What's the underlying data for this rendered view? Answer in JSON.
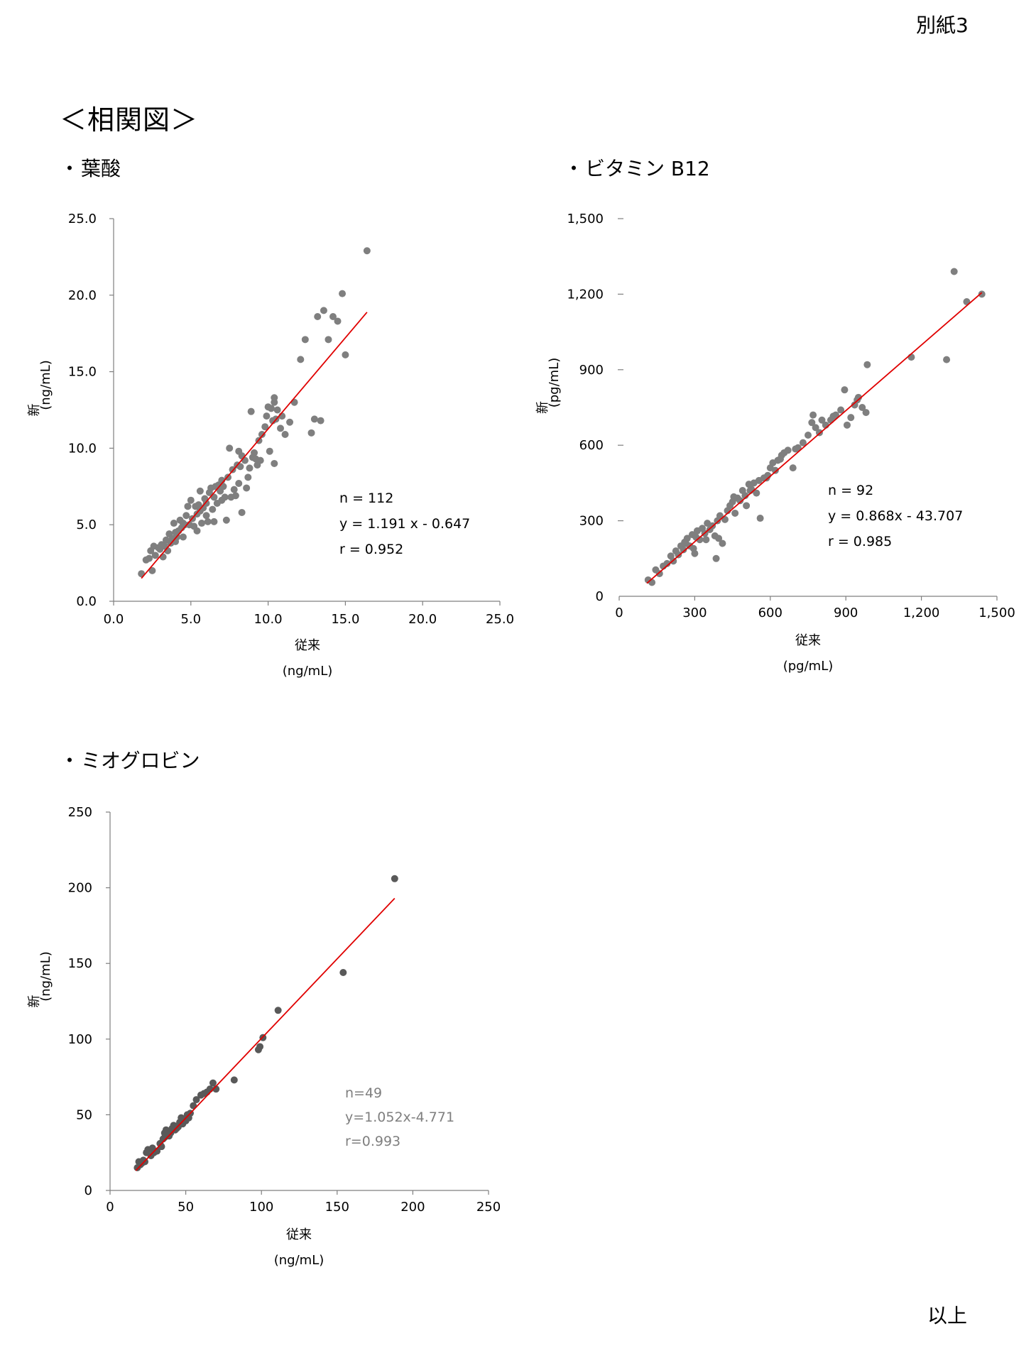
{
  "document_label": "別紙3",
  "section_title": "＜相関図＞",
  "footer": "以上",
  "bullet": "・",
  "chart_data": [
    {
      "type": "scatter",
      "title": "葉酸",
      "xlabel": "従来",
      "xunit": "(ng/mL)",
      "ylabel": "新",
      "yunit": "(ng/mL)",
      "xlim": [
        0,
        25
      ],
      "ylim": [
        0,
        25
      ],
      "xticks": [
        "0.0",
        "5.0",
        "10.0",
        "15.0",
        "20.0",
        "25.0"
      ],
      "yticks": [
        "0.0",
        "5.0",
        "10.0",
        "15.0",
        "20.0",
        "25.0"
      ],
      "stats": [
        "n = 112",
        "y = 1.191 x - 0.647",
        "r = 0.952"
      ],
      "regression": {
        "slope": 1.191,
        "intercept": -0.647,
        "x_range": [
          1.8,
          16.4
        ]
      },
      "point_color": "#7f7f7f",
      "line_color": "#e00000",
      "grid": false,
      "points": [
        [
          1.8,
          1.8
        ],
        [
          2.1,
          2.7
        ],
        [
          2.3,
          2.8
        ],
        [
          2.4,
          3.3
        ],
        [
          2.5,
          2.0
        ],
        [
          2.6,
          3.6
        ],
        [
          2.7,
          3.0
        ],
        [
          2.9,
          3.5
        ],
        [
          3.0,
          3.4
        ],
        [
          3.1,
          3.7
        ],
        [
          3.2,
          2.9
        ],
        [
          3.3,
          3.6
        ],
        [
          3.4,
          4.0
        ],
        [
          3.5,
          3.3
        ],
        [
          3.6,
          4.4
        ],
        [
          3.7,
          3.8
        ],
        [
          3.8,
          4.1
        ],
        [
          3.9,
          5.1
        ],
        [
          4.0,
          4.5
        ],
        [
          4.0,
          3.9
        ],
        [
          4.1,
          4.2
        ],
        [
          4.2,
          4.6
        ],
        [
          4.3,
          5.3
        ],
        [
          4.4,
          4.8
        ],
        [
          4.5,
          5.1
        ],
        [
          4.5,
          4.2
        ],
        [
          4.6,
          5.0
        ],
        [
          4.7,
          5.6
        ],
        [
          4.8,
          6.2
        ],
        [
          4.9,
          5.0
        ],
        [
          5.0,
          6.6
        ],
        [
          5.1,
          5.4
        ],
        [
          5.2,
          4.9
        ],
        [
          5.3,
          6.2
        ],
        [
          5.4,
          4.6
        ],
        [
          5.4,
          5.7
        ],
        [
          5.5,
          6.3
        ],
        [
          5.6,
          7.2
        ],
        [
          5.6,
          5.9
        ],
        [
          5.7,
          5.1
        ],
        [
          5.8,
          6.1
        ],
        [
          5.9,
          6.7
        ],
        [
          6.0,
          5.6
        ],
        [
          6.0,
          6.4
        ],
        [
          6.1,
          5.2
        ],
        [
          6.2,
          7.1
        ],
        [
          6.3,
          7.4
        ],
        [
          6.4,
          6.0
        ],
        [
          6.5,
          5.2
        ],
        [
          6.5,
          6.8
        ],
        [
          6.6,
          7.5
        ],
        [
          6.7,
          6.4
        ],
        [
          6.8,
          7.6
        ],
        [
          6.9,
          7.2
        ],
        [
          7.0,
          6.6
        ],
        [
          7.0,
          7.9
        ],
        [
          7.1,
          7.5
        ],
        [
          7.2,
          6.8
        ],
        [
          7.3,
          5.3
        ],
        [
          7.4,
          8.1
        ],
        [
          7.5,
          10.0
        ],
        [
          7.6,
          6.8
        ],
        [
          7.7,
          8.6
        ],
        [
          7.8,
          7.3
        ],
        [
          7.9,
          6.9
        ],
        [
          8.0,
          8.9
        ],
        [
          8.1,
          9.8
        ],
        [
          8.1,
          7.7
        ],
        [
          8.2,
          8.8
        ],
        [
          8.3,
          9.5
        ],
        [
          8.3,
          5.8
        ],
        [
          8.5,
          9.2
        ],
        [
          8.6,
          7.4
        ],
        [
          8.7,
          8.1
        ],
        [
          8.8,
          8.7
        ],
        [
          8.9,
          12.4
        ],
        [
          9.0,
          9.4
        ],
        [
          9.1,
          9.7
        ],
        [
          9.2,
          9.3
        ],
        [
          9.3,
          8.9
        ],
        [
          9.4,
          10.5
        ],
        [
          9.5,
          9.2
        ],
        [
          9.6,
          10.9
        ],
        [
          9.8,
          11.4
        ],
        [
          9.9,
          12.1
        ],
        [
          10.0,
          12.7
        ],
        [
          10.1,
          9.8
        ],
        [
          10.2,
          12.6
        ],
        [
          10.3,
          11.8
        ],
        [
          10.4,
          13.0
        ],
        [
          10.4,
          13.3
        ],
        [
          10.5,
          11.9
        ],
        [
          10.6,
          12.5
        ],
        [
          10.8,
          11.3
        ],
        [
          10.9,
          12.1
        ],
        [
          11.1,
          10.9
        ],
        [
          11.4,
          11.7
        ],
        [
          11.7,
          13.0
        ],
        [
          12.1,
          15.8
        ],
        [
          12.4,
          17.1
        ],
        [
          12.8,
          11.0
        ],
        [
          13.0,
          11.9
        ],
        [
          13.2,
          18.6
        ],
        [
          13.4,
          11.8
        ],
        [
          13.6,
          19.0
        ],
        [
          13.9,
          17.1
        ],
        [
          14.2,
          18.6
        ],
        [
          14.5,
          18.3
        ],
        [
          14.8,
          20.1
        ],
        [
          15.0,
          16.1
        ],
        [
          16.4,
          22.9
        ],
        [
          10.4,
          9.0
        ]
      ]
    },
    {
      "type": "scatter",
      "title": "ビタミン B12",
      "xlabel": "従来",
      "xunit": "(pg/mL)",
      "ylabel": "新",
      "yunit": "(pg/mL)",
      "xlim": [
        0,
        1500
      ],
      "ylim": [
        0,
        1500
      ],
      "xticks": [
        "0",
        "300",
        "600",
        "900",
        "1,200",
        "1,500"
      ],
      "yticks": [
        "0",
        "300",
        "600",
        "900",
        "1,200",
        "1,500"
      ],
      "stats": [
        "n = 92",
        "y = 0.868x - 43.707",
        "r = 0.985"
      ],
      "regression": {
        "slope": 0.868,
        "intercept": -43.707,
        "x_range": [
          110,
          1440
        ]
      },
      "point_color": "#7f7f7f",
      "line_color": "#e00000",
      "grid": false,
      "points": [
        [
          115,
          65
        ],
        [
          130,
          55
        ],
        [
          145,
          105
        ],
        [
          160,
          90
        ],
        [
          175,
          120
        ],
        [
          190,
          130
        ],
        [
          205,
          160
        ],
        [
          215,
          140
        ],
        [
          225,
          180
        ],
        [
          235,
          165
        ],
        [
          245,
          200
        ],
        [
          255,
          185
        ],
        [
          265,
          210
        ],
        [
          270,
          230
        ],
        [
          280,
          200
        ],
        [
          290,
          245
        ],
        [
          295,
          190
        ],
        [
          305,
          235
        ],
        [
          310,
          260
        ],
        [
          320,
          225
        ],
        [
          330,
          270
        ],
        [
          340,
          250
        ],
        [
          350,
          290
        ],
        [
          360,
          265
        ],
        [
          370,
          280
        ],
        [
          380,
          240
        ],
        [
          385,
          150
        ],
        [
          390,
          300
        ],
        [
          400,
          320
        ],
        [
          410,
          210
        ],
        [
          420,
          305
        ],
        [
          430,
          340
        ],
        [
          440,
          360
        ],
        [
          450,
          375
        ],
        [
          460,
          330
        ],
        [
          470,
          390
        ],
        [
          480,
          380
        ],
        [
          490,
          420
        ],
        [
          500,
          400
        ],
        [
          505,
          360
        ],
        [
          515,
          445
        ],
        [
          525,
          425
        ],
        [
          535,
          450
        ],
        [
          545,
          410
        ],
        [
          555,
          460
        ],
        [
          560,
          310
        ],
        [
          575,
          470
        ],
        [
          590,
          480
        ],
        [
          600,
          510
        ],
        [
          610,
          530
        ],
        [
          620,
          500
        ],
        [
          630,
          540
        ],
        [
          645,
          560
        ],
        [
          655,
          570
        ],
        [
          670,
          580
        ],
        [
          690,
          510
        ],
        [
          710,
          590
        ],
        [
          730,
          610
        ],
        [
          750,
          640
        ],
        [
          765,
          690
        ],
        [
          770,
          720
        ],
        [
          780,
          670
        ],
        [
          795,
          650
        ],
        [
          805,
          700
        ],
        [
          820,
          680
        ],
        [
          840,
          700
        ],
        [
          860,
          720
        ],
        [
          880,
          740
        ],
        [
          895,
          820
        ],
        [
          905,
          680
        ],
        [
          920,
          710
        ],
        [
          935,
          760
        ],
        [
          950,
          790
        ],
        [
          965,
          750
        ],
        [
          980,
          730
        ],
        [
          985,
          920
        ],
        [
          1160,
          950
        ],
        [
          1300,
          940
        ],
        [
          1330,
          1290
        ],
        [
          1380,
          1170
        ],
        [
          1440,
          1200
        ],
        [
          260,
          215
        ],
        [
          300,
          170
        ],
        [
          345,
          225
        ],
        [
          395,
          230
        ],
        [
          455,
          395
        ],
        [
          520,
          420
        ],
        [
          585,
          470
        ],
        [
          640,
          545
        ],
        [
          700,
          585
        ],
        [
          850,
          715
        ],
        [
          945,
          780
        ]
      ]
    },
    {
      "type": "scatter",
      "title": "ミオグロビン",
      "xlabel": "従来",
      "xunit": "(ng/mL)",
      "ylabel": "新",
      "yunit": "(ng/mL)",
      "xlim": [
        0,
        250
      ],
      "ylim": [
        0,
        250
      ],
      "xticks": [
        "0",
        "50",
        "100",
        "150",
        "200",
        "250"
      ],
      "yticks": [
        "0",
        "50",
        "100",
        "150",
        "200",
        "250"
      ],
      "stats": [
        "n=49",
        "y=1.052x-4.771",
        "r=0.993"
      ],
      "regression": {
        "slope": 1.052,
        "intercept": -4.771,
        "x_range": [
          17,
          188
        ]
      },
      "point_color": "#595959",
      "line_color": "#e00000",
      "grid": false,
      "points": [
        [
          18,
          15
        ],
        [
          19,
          19
        ],
        [
          20,
          17
        ],
        [
          21,
          18
        ],
        [
          22,
          20
        ],
        [
          23,
          19
        ],
        [
          25,
          27
        ],
        [
          27,
          23
        ],
        [
          28,
          28
        ],
        [
          29,
          25
        ],
        [
          31,
          26
        ],
        [
          33,
          31
        ],
        [
          34,
          29
        ],
        [
          35,
          34
        ],
        [
          36,
          35
        ],
        [
          37,
          40
        ],
        [
          38,
          39
        ],
        [
          39,
          36
        ],
        [
          40,
          38
        ],
        [
          41,
          41
        ],
        [
          42,
          43
        ],
        [
          43,
          40
        ],
        [
          45,
          42
        ],
        [
          46,
          45
        ],
        [
          47,
          48
        ],
        [
          48,
          44
        ],
        [
          49,
          47
        ],
        [
          50,
          46
        ],
        [
          51,
          50
        ],
        [
          52,
          48
        ],
        [
          53,
          51
        ],
        [
          55,
          56
        ],
        [
          57,
          60
        ],
        [
          60,
          63
        ],
        [
          62,
          64
        ],
        [
          64,
          65
        ],
        [
          66,
          67
        ],
        [
          68,
          71
        ],
        [
          70,
          67
        ],
        [
          82,
          73
        ],
        [
          98,
          93
        ],
        [
          99,
          95
        ],
        [
          101,
          101
        ],
        [
          111,
          119
        ],
        [
          154,
          144
        ],
        [
          188,
          206
        ],
        [
          36,
          38
        ],
        [
          44,
          41
        ],
        [
          24,
          25
        ]
      ]
    }
  ]
}
